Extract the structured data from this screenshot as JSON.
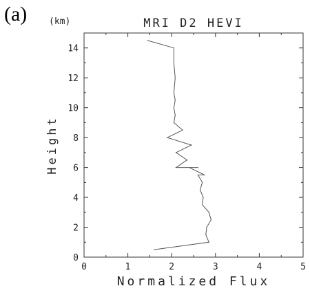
{
  "panel_label": "(a)",
  "chart_data": {
    "type": "line",
    "title": "MRI D2 HEVI",
    "xlabel": "Normalized Flux",
    "ylabel": "Height",
    "y_unit": "(km)",
    "xlim": [
      0,
      5
    ],
    "ylim": [
      0,
      15
    ],
    "xticks": [
      "0",
      "1",
      "2",
      "3",
      "4",
      "5"
    ],
    "yticks": [
      "0",
      "2",
      "4",
      "6",
      "8",
      "10",
      "12",
      "14"
    ],
    "grid": false,
    "series": [
      {
        "color": "#555555",
        "x": [
          1.6,
          2.85,
          2.78,
          2.8,
          2.9,
          2.85,
          2.7,
          2.72,
          2.65,
          2.7,
          2.6,
          2.75,
          2.4,
          2.6,
          2.1,
          2.35,
          2.1,
          2.45,
          1.9,
          2.25,
          2.05,
          2.08,
          2.05,
          2.08,
          2.05,
          2.08,
          2.05,
          2.05,
          1.45
        ],
        "y": [
          0.5,
          1.0,
          1.5,
          2.0,
          2.5,
          3.0,
          3.5,
          4.0,
          4.5,
          5.0,
          5.5,
          5.5,
          6.0,
          6.0,
          6.0,
          6.5,
          7.0,
          7.5,
          8.0,
          8.5,
          9.0,
          9.5,
          10.0,
          10.5,
          11.0,
          12.0,
          13.0,
          14.0,
          14.5
        ]
      }
    ]
  }
}
